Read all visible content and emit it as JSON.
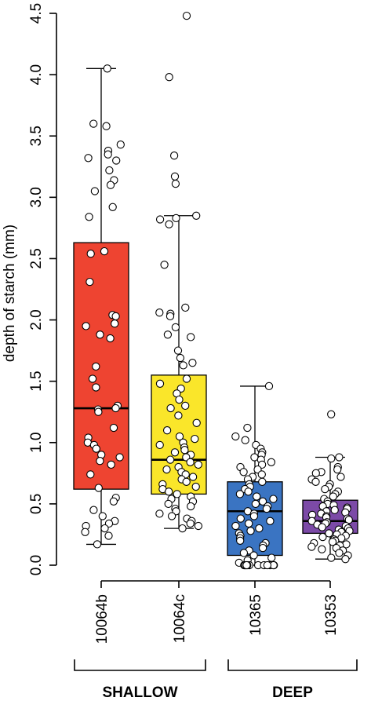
{
  "chart_data": {
    "type": "boxplot",
    "ylabel": "depth of starch  (mm)",
    "ylim": [
      0,
      4.5
    ],
    "yticks": [
      0.0,
      0.5,
      1.0,
      1.5,
      2.0,
      2.5,
      3.0,
      3.5,
      4.0,
      4.5
    ],
    "ytick_labels": [
      "0.0",
      "0.5",
      "1.0",
      "1.5",
      "2.0",
      "2.5",
      "3.0",
      "3.5",
      "4.0",
      "4.5"
    ],
    "categories": [
      "10064b",
      "10064c",
      "10365",
      "10353"
    ],
    "groups": [
      {
        "label": "SHALLOW",
        "categories": [
          "10064b",
          "10064c"
        ]
      },
      {
        "label": "DEEP",
        "categories": [
          "10365",
          "10353"
        ]
      }
    ],
    "series": [
      {
        "category": "10064b",
        "color": "#EE4431",
        "q1": 0.62,
        "median": 1.28,
        "q3": 2.63,
        "whisker_low": 0.17,
        "whisker_high": 4.05,
        "points": [
          4.05,
          3.6,
          3.58,
          3.43,
          3.38,
          3.35,
          3.32,
          3.3,
          3.22,
          3.14,
          3.1,
          3.05,
          2.92,
          2.84,
          2.56,
          2.54,
          2.31,
          2.04,
          2.03,
          1.97,
          1.95,
          1.88,
          1.85,
          1.62,
          1.52,
          1.45,
          1.3,
          1.28,
          1.27,
          1.25,
          1.12,
          1.04,
          1.0,
          0.98,
          0.95,
          0.9,
          0.88,
          0.85,
          0.82,
          0.74,
          0.63,
          0.55,
          0.52,
          0.45,
          0.4,
          0.36,
          0.34,
          0.32,
          0.3,
          0.27,
          0.24,
          0.17
        ]
      },
      {
        "category": "10064c",
        "color": "#FAE62A",
        "q1": 0.58,
        "median": 0.86,
        "q3": 1.55,
        "whisker_low": 0.3,
        "whisker_high": 2.85,
        "points": [
          4.48,
          3.98,
          3.34,
          3.17,
          3.11,
          2.85,
          2.83,
          2.82,
          2.78,
          2.45,
          2.1,
          2.06,
          2.05,
          2.03,
          1.94,
          1.88,
          1.86,
          1.75,
          1.69,
          1.65,
          1.63,
          1.52,
          1.48,
          1.44,
          1.4,
          1.35,
          1.3,
          1.28,
          1.22,
          1.16,
          1.1,
          1.05,
          1.03,
          1.0,
          0.98,
          0.96,
          0.94,
          0.92,
          0.9,
          0.88,
          0.86,
          0.84,
          0.82,
          0.8,
          0.78,
          0.76,
          0.74,
          0.72,
          0.7,
          0.68,
          0.66,
          0.64,
          0.62,
          0.6,
          0.58,
          0.56,
          0.54,
          0.52,
          0.5,
          0.48,
          0.46,
          0.44,
          0.42,
          0.4,
          0.38,
          0.36,
          0.34,
          0.32,
          0.3
        ]
      },
      {
        "category": "10365",
        "color": "#3A74C2",
        "q1": 0.08,
        "median": 0.44,
        "q3": 0.68,
        "whisker_low": 0.0,
        "whisker_high": 1.46,
        "points": [
          1.46,
          1.12,
          1.05,
          1.02,
          0.98,
          0.95,
          0.92,
          0.9,
          0.88,
          0.86,
          0.84,
          0.82,
          0.8,
          0.78,
          0.76,
          0.74,
          0.72,
          0.7,
          0.68,
          0.66,
          0.64,
          0.62,
          0.6,
          0.58,
          0.56,
          0.54,
          0.52,
          0.5,
          0.48,
          0.46,
          0.44,
          0.42,
          0.4,
          0.38,
          0.36,
          0.34,
          0.32,
          0.3,
          0.28,
          0.26,
          0.24,
          0.22,
          0.2,
          0.18,
          0.16,
          0.14,
          0.12,
          0.1,
          0.08,
          0.06,
          0.04,
          0.02,
          0.0,
          0.0,
          0.0,
          0.0,
          0.0,
          0.0,
          0.0,
          0.0,
          0.0,
          0.0,
          0.0,
          0.0
        ]
      },
      {
        "category": "10353",
        "color": "#7C4AA7",
        "q1": 0.26,
        "median": 0.36,
        "q3": 0.53,
        "whisker_low": 0.05,
        "whisker_high": 0.88,
        "points": [
          1.23,
          0.88,
          0.87,
          0.8,
          0.78,
          0.76,
          0.75,
          0.72,
          0.7,
          0.68,
          0.66,
          0.64,
          0.62,
          0.6,
          0.58,
          0.56,
          0.54,
          0.52,
          0.5,
          0.49,
          0.48,
          0.47,
          0.46,
          0.45,
          0.44,
          0.43,
          0.42,
          0.41,
          0.4,
          0.39,
          0.38,
          0.37,
          0.36,
          0.35,
          0.34,
          0.33,
          0.32,
          0.31,
          0.3,
          0.29,
          0.28,
          0.27,
          0.26,
          0.25,
          0.24,
          0.23,
          0.22,
          0.21,
          0.2,
          0.19,
          0.18,
          0.17,
          0.16,
          0.15,
          0.14,
          0.13,
          0.12,
          0.1,
          0.08,
          0.06,
          0.05
        ]
      }
    ]
  }
}
